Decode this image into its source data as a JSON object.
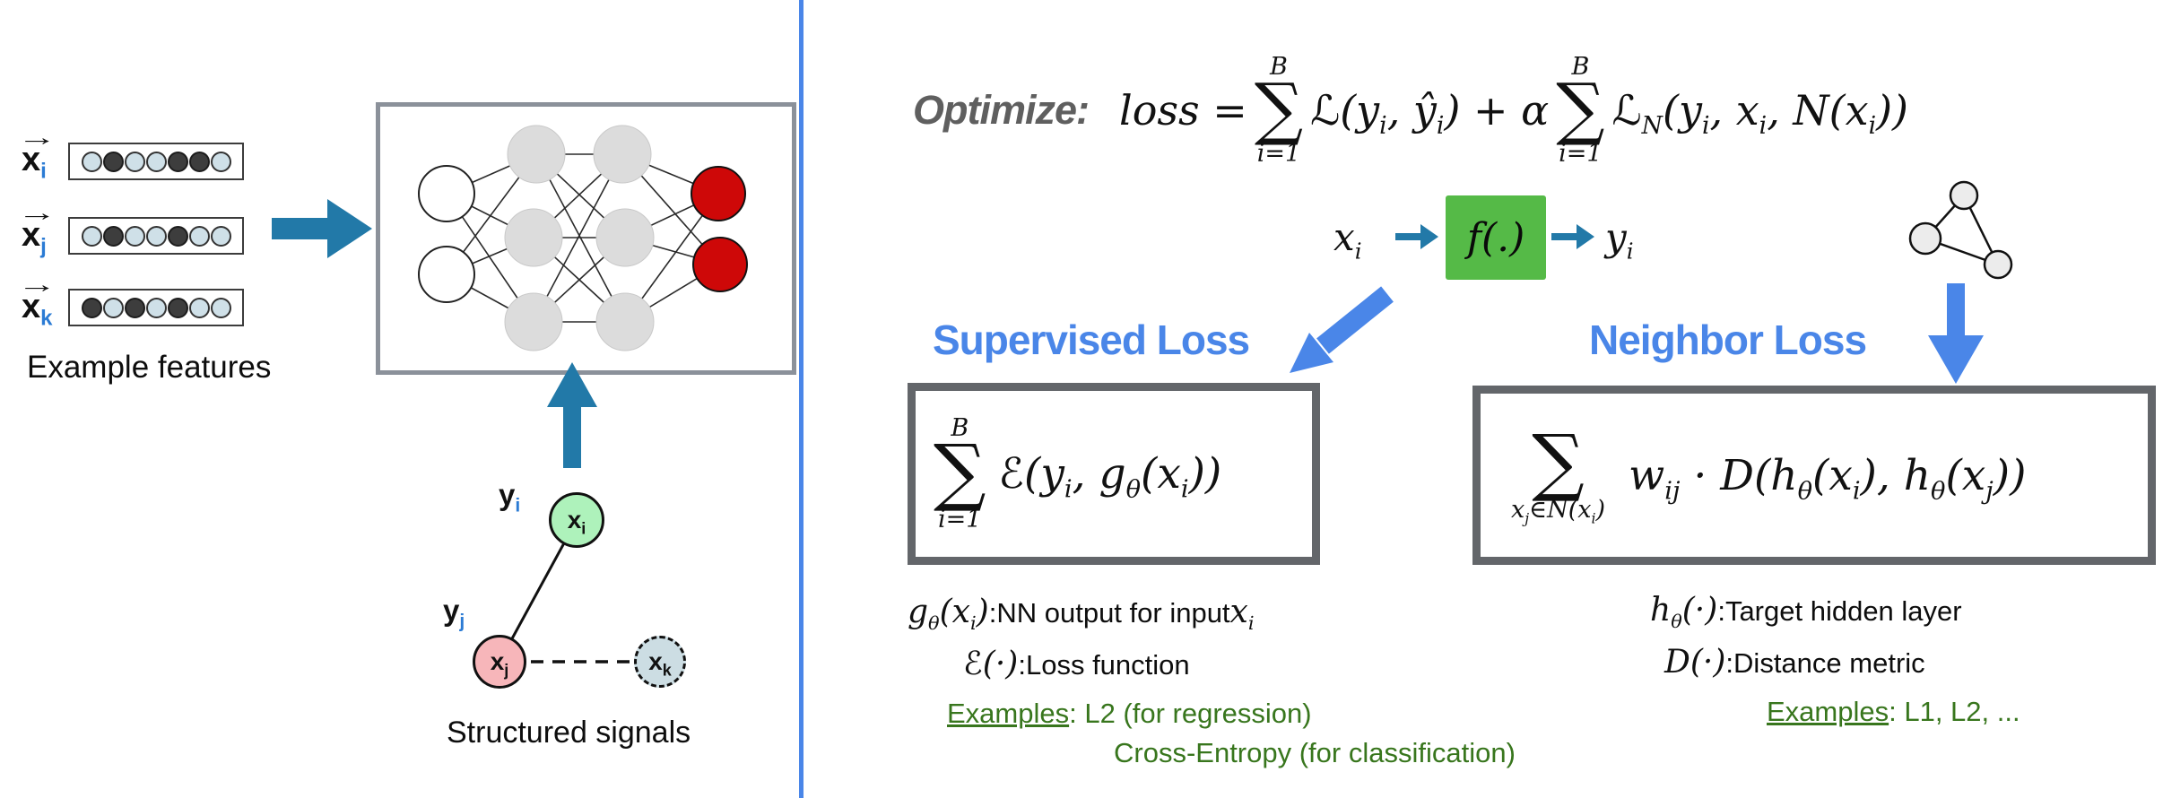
{
  "colors": {
    "heading_blue": "#4a86e8",
    "divider_blue": "#4a86e8",
    "arrow_teal": "#2279a8",
    "fn_box_green": "#55ba47",
    "examples_green": "#38761d",
    "output_node_red": "#ce0808",
    "hidden_node_gray": "#dcdcdc",
    "subscript_blue": "#2b7bd4"
  },
  "left": {
    "vec_arrow": "→",
    "features": [
      {
        "base": "x",
        "sub": "i",
        "cells": [
          0,
          1,
          0,
          0,
          1,
          1,
          0
        ]
      },
      {
        "base": "x",
        "sub": "j",
        "cells": [
          0,
          1,
          0,
          0,
          1,
          0,
          0
        ]
      },
      {
        "base": "x",
        "sub": "k",
        "cells": [
          1,
          0,
          1,
          0,
          1,
          0,
          0
        ]
      }
    ],
    "features_caption": "Example features",
    "graph": {
      "label_yi_base": "y",
      "label_yi_sub": "i",
      "label_yj_base": "y",
      "label_yj_sub": "j",
      "node_xi_base": "x",
      "node_xi_sub": "i",
      "node_xj_base": "x",
      "node_xj_sub": "j",
      "node_xk_base": "x",
      "node_xk_sub": "k",
      "caption": "Structured signals"
    }
  },
  "right": {
    "optimize_label": "Optimize:",
    "loss": {
      "lhs": "loss =",
      "sum_top": "B",
      "sum_sym": "∑",
      "sum_bot": "i=1",
      "a1": "ℒ(y",
      "a1s": "i",
      "a2": ", ŷ",
      "a2s": "i",
      "a3": ") + α",
      "b1": "ℒ",
      "b1s": "N",
      "b2": "(y",
      "b2s": "i",
      "b3": ", x",
      "b3s": "i",
      "b4": ", N(x",
      "b4s": "i",
      "b5": "))"
    },
    "flow": {
      "in_base": "x",
      "in_sub": "i",
      "fn": "f(.)",
      "out_base": "y",
      "out_sub": "i"
    },
    "supervised": {
      "heading": "Supervised Loss",
      "sum_top": "B",
      "sum_sym": "∑",
      "sum_bot": "i=1",
      "f1": "ℰ(y",
      "f1s": "i",
      "f2": ", g",
      "f2s": "θ",
      "f3": "(x",
      "f3s": "i",
      "f4": "))",
      "n1a": "g",
      "n1as": "θ",
      "n1b": "(x",
      "n1bs": "i",
      "n1c": ")",
      "n1sep": ": ",
      "n1text": "NN output for input ",
      "n1d": "x",
      "n1ds": "i",
      "n2a": "ℰ(·)",
      "n2sep": " : ",
      "n2text": "Loss function",
      "ex_label": "Examples",
      "ex_rest": ": L2 (for regression)",
      "ex_line2": "Cross-Entropy (for classification)"
    },
    "neighbor": {
      "heading": "Neighbor Loss",
      "sum_sym": "∑",
      "lim1": "x",
      "lim1s": "j",
      "lim2": "∈",
      "lim3": "N",
      "lim4": "(x",
      "lim4s": "i",
      "lim5": ")",
      "f1": "w",
      "f1s": "ij",
      "f2": " · ",
      "f3": "D",
      "f4": "(h",
      "f4s": "θ",
      "f5": "(x",
      "f5s": "i",
      "f6": "), h",
      "f6s": "θ",
      "f7": "(x",
      "f7s": "j",
      "f8": "))",
      "n1a": "h",
      "n1as": "θ",
      "n1b": "(·)",
      "n1sep": ": ",
      "n1text": "Target hidden layer",
      "n2a": "D",
      "n2b": "(·)",
      "n2sep": " : ",
      "n2text": "Distance metric",
      "ex_label": "Examples",
      "ex_rest": ": L1, L2, ..."
    }
  }
}
